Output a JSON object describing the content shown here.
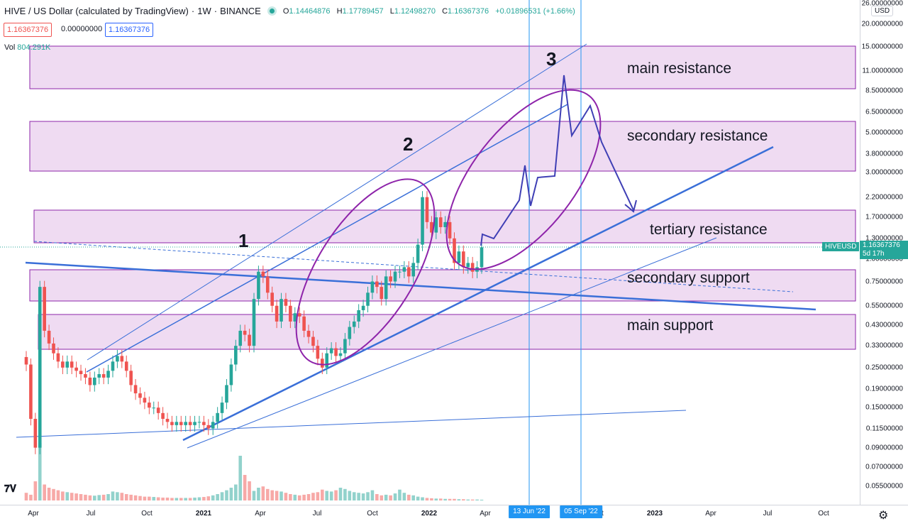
{
  "header": {
    "title": "HIVE / US Dollar (calculated by TradingView)",
    "interval": "1W",
    "exchange": "BINANCE",
    "open_label": "O",
    "open": "1.14464876",
    "high_label": "H",
    "high": "1.17789457",
    "low_label": "L",
    "low": "1.12498270",
    "close_label": "C",
    "close": "1.16367376",
    "change": "+0.01896531 (+1.66%)",
    "bid": "1.16367376",
    "spread": "0.00000000",
    "ask": "1.16367376",
    "vol_label": "Vol",
    "vol_value": "804.291K"
  },
  "price_axis": {
    "currency": "USD",
    "last_price": "1.16367376",
    "countdown": "5d 17h",
    "symbol_tag": "HIVEUSD"
  },
  "time_axis": {
    "labels": [
      "Apr",
      "Jul",
      "Oct",
      "2021",
      "Apr",
      "Jul",
      "Oct",
      "2022",
      "Apr",
      "Jul",
      "Oct",
      "2023",
      "Apr",
      "Jul",
      "Oct"
    ],
    "bold_labels": [
      "2021",
      "2022",
      "2023"
    ],
    "markers": [
      "13 Jun '22",
      "05 Sep '22"
    ]
  },
  "annotations": {
    "zones": [
      "main resistance",
      "secondary resistance",
      "tertiary resistance",
      "secondary support",
      "main support"
    ],
    "waves": [
      "1",
      "2",
      "3"
    ]
  },
  "colors": {
    "up": "#26a69a",
    "down": "#ef5350",
    "zone_fill": "#e1bee7",
    "zone_border": "#8e24aa",
    "trend": "#3a6fd8",
    "marker": "#2196f3",
    "ellipse": "#8e24aa"
  },
  "chart_data": {
    "type": "candlestick",
    "title": "HIVE / US Dollar (calculated by TradingView)",
    "yscale": "log",
    "ylim": [
      0.045,
      26.0
    ],
    "y_ticks": [
      26.0,
      20.0,
      15.0,
      11.0,
      8.5,
      6.5,
      5.0,
      3.8,
      3.0,
      2.2,
      1.7,
      1.3,
      1.0,
      0.75,
      0.55,
      0.43,
      0.33,
      0.25,
      0.19,
      0.15,
      0.115,
      0.09,
      0.07,
      0.055
    ],
    "y_tick_labels": [
      "26.00000000",
      "20.00000000",
      "15.00000000",
      "11.00000000",
      "8.50000000",
      "6.50000000",
      "5.00000000",
      "3.80000000",
      "3.00000000",
      "2.20000000",
      "1.70000000",
      "1.30000000",
      "1.00000000",
      "0.75000000",
      "0.55000000",
      "0.43000000",
      "0.33000000",
      "0.25000000",
      "0.19000000",
      "0.15000000",
      "0.11500000",
      "0.09000000",
      "0.07000000",
      "0.05500000"
    ],
    "weekly_close": [
      0.26,
      0.13,
      0.09,
      0.7,
      0.4,
      0.34,
      0.3,
      0.27,
      0.25,
      0.27,
      0.25,
      0.24,
      0.23,
      0.22,
      0.2,
      0.22,
      0.23,
      0.22,
      0.24,
      0.27,
      0.29,
      0.27,
      0.24,
      0.2,
      0.18,
      0.17,
      0.16,
      0.15,
      0.15,
      0.14,
      0.13,
      0.125,
      0.12,
      0.125,
      0.12,
      0.125,
      0.12,
      0.125,
      0.125,
      0.12,
      0.115,
      0.125,
      0.14,
      0.16,
      0.2,
      0.26,
      0.33,
      0.4,
      0.38,
      0.33,
      0.6,
      0.85,
      0.8,
      0.65,
      0.55,
      0.45,
      0.6,
      0.55,
      0.45,
      0.5,
      0.48,
      0.4,
      0.37,
      0.33,
      0.28,
      0.25,
      0.3,
      0.32,
      0.29,
      0.3,
      0.36,
      0.42,
      0.45,
      0.52,
      0.55,
      0.65,
      0.75,
      0.7,
      0.6,
      0.8,
      0.75,
      0.85,
      0.85,
      0.9,
      0.8,
      0.95,
      1.2,
      2.2,
      1.6,
      1.4,
      1.7,
      1.5,
      1.6,
      1.3,
      0.95,
      1.1,
      0.9,
      0.95,
      0.85,
      0.9,
      1.16
    ],
    "volume_k": [
      120,
      90,
      300,
      900,
      250,
      200,
      180,
      160,
      140,
      130,
      120,
      110,
      100,
      90,
      80,
      75,
      85,
      90,
      100,
      140,
      130,
      120,
      100,
      90,
      80,
      70,
      60,
      60,
      55,
      50,
      45,
      45,
      40,
      40,
      40,
      40,
      40,
      45,
      50,
      55,
      65,
      80,
      100,
      130,
      160,
      200,
      250,
      700,
      400,
      300,
      150,
      200,
      220,
      180,
      160,
      150,
      140,
      120,
      100,
      90,
      80,
      90,
      100,
      120,
      130,
      170,
      150,
      140,
      160,
      200,
      180,
      150,
      130,
      120,
      110,
      130,
      160,
      100,
      80,
      90,
      80,
      110,
      170,
      120,
      90,
      80,
      60,
      50,
      40,
      35,
      30,
      30,
      25,
      25,
      25,
      20,
      20,
      15,
      15,
      15,
      12
    ]
  }
}
